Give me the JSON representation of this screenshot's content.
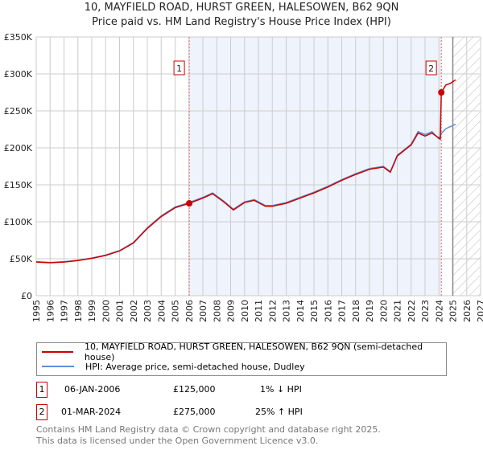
{
  "title": "10, MAYFIELD ROAD, HURST GREEN, HALESOWEN, B62 9QN",
  "subtitle": "Price paid vs. HM Land Registry's House Price Index (HPI)",
  "chart_data": {
    "type": "line",
    "title": "10, MAYFIELD ROAD, HURST GREEN, HALESOWEN, B62 9QN",
    "xlim": [
      1995,
      2027
    ],
    "ylim": [
      0,
      350000
    ],
    "xticks": [
      "1995",
      "1996",
      "1997",
      "1998",
      "1999",
      "2000",
      "2001",
      "2002",
      "2003",
      "2004",
      "2005",
      "2006",
      "2007",
      "2008",
      "2009",
      "2010",
      "2011",
      "2012",
      "2013",
      "2014",
      "2015",
      "2016",
      "2017",
      "2018",
      "2019",
      "2020",
      "2021",
      "2022",
      "2023",
      "2024",
      "2025",
      "2026",
      "2027"
    ],
    "yticks": [
      "£0",
      "£50K",
      "£100K",
      "£150K",
      "£200K",
      "£250K",
      "£300K",
      "£350K"
    ],
    "forecast_start": 2025.0,
    "series": [
      {
        "name": "HPI: Average price, semi-detached house, Dudley",
        "color": "#5b8fd6",
        "x": [
          1995,
          1996,
          1997,
          1998,
          1999,
          2000,
          2001,
          2002,
          2003,
          2004,
          2005,
          2006,
          2007,
          2007.7,
          2008.5,
          2009.2,
          2010,
          2010.7,
          2011.5,
          2012,
          2013,
          2014,
          2015,
          2016,
          2017,
          2018,
          2019,
          2020,
          2020.5,
          2021,
          2022,
          2022.5,
          2023,
          2023.5,
          2024,
          2024.2,
          2024.5,
          2025.2
        ],
        "y": [
          46000,
          45000,
          46000,
          48000,
          51000,
          55000,
          61000,
          72000,
          92000,
          108000,
          120000,
          126000,
          133000,
          139000,
          128000,
          117000,
          127000,
          130000,
          122000,
          122000,
          126000,
          133000,
          140000,
          148000,
          157000,
          165000,
          172000,
          175000,
          168000,
          190000,
          205000,
          222000,
          218000,
          222000,
          212000,
          220000,
          226000,
          232000
        ]
      },
      {
        "name": "10, MAYFIELD ROAD, HURST GREEN, HALESOWEN, B62 9QN (semi-detached house)",
        "color": "#cc0000",
        "x": [
          1995,
          1996,
          1997,
          1998,
          1999,
          2000,
          2001,
          2002,
          2003,
          2004,
          2005,
          2006.02,
          2007,
          2007.7,
          2008.5,
          2009.2,
          2010,
          2010.7,
          2011.5,
          2012,
          2013,
          2014,
          2015,
          2016,
          2017,
          2018,
          2019,
          2020,
          2020.5,
          2021,
          2022,
          2022.5,
          2023,
          2023.5,
          2024.1,
          2024.17,
          2024.5,
          2024.8,
          2025.2
        ],
        "y": [
          45500,
          44500,
          45500,
          47500,
          50500,
          54500,
          60500,
          71300,
          91000,
          107000,
          119000,
          125000,
          132000,
          138000,
          127000,
          116000,
          126000,
          129000,
          121000,
          121000,
          125000,
          132000,
          139000,
          147000,
          156000,
          164000,
          171000,
          174000,
          167000,
          189000,
          204000,
          220000,
          216000,
          220000,
          212000,
          275000,
          285000,
          287000,
          292000
        ]
      }
    ],
    "sales": [
      {
        "label": "1",
        "x": 2006.02,
        "y": 125000
      },
      {
        "label": "2",
        "x": 2024.17,
        "y": 275000
      }
    ]
  },
  "legend": {
    "property": "10, MAYFIELD ROAD, HURST GREEN, HALESOWEN, B62 9QN (semi-detached house)",
    "hpi": "HPI: Average price, semi-detached house, Dudley"
  },
  "transactions": [
    {
      "num": "1",
      "date": "06-JAN-2006",
      "price": "£125,000",
      "hpi": "1% ↓ HPI"
    },
    {
      "num": "2",
      "date": "01-MAR-2024",
      "price": "£275,000",
      "hpi": "25% ↑ HPI"
    }
  ],
  "footer": [
    "Contains HM Land Registry data © Crown copyright and database right 2025.",
    "This data is licensed under the Open Government Licence v3.0."
  ]
}
